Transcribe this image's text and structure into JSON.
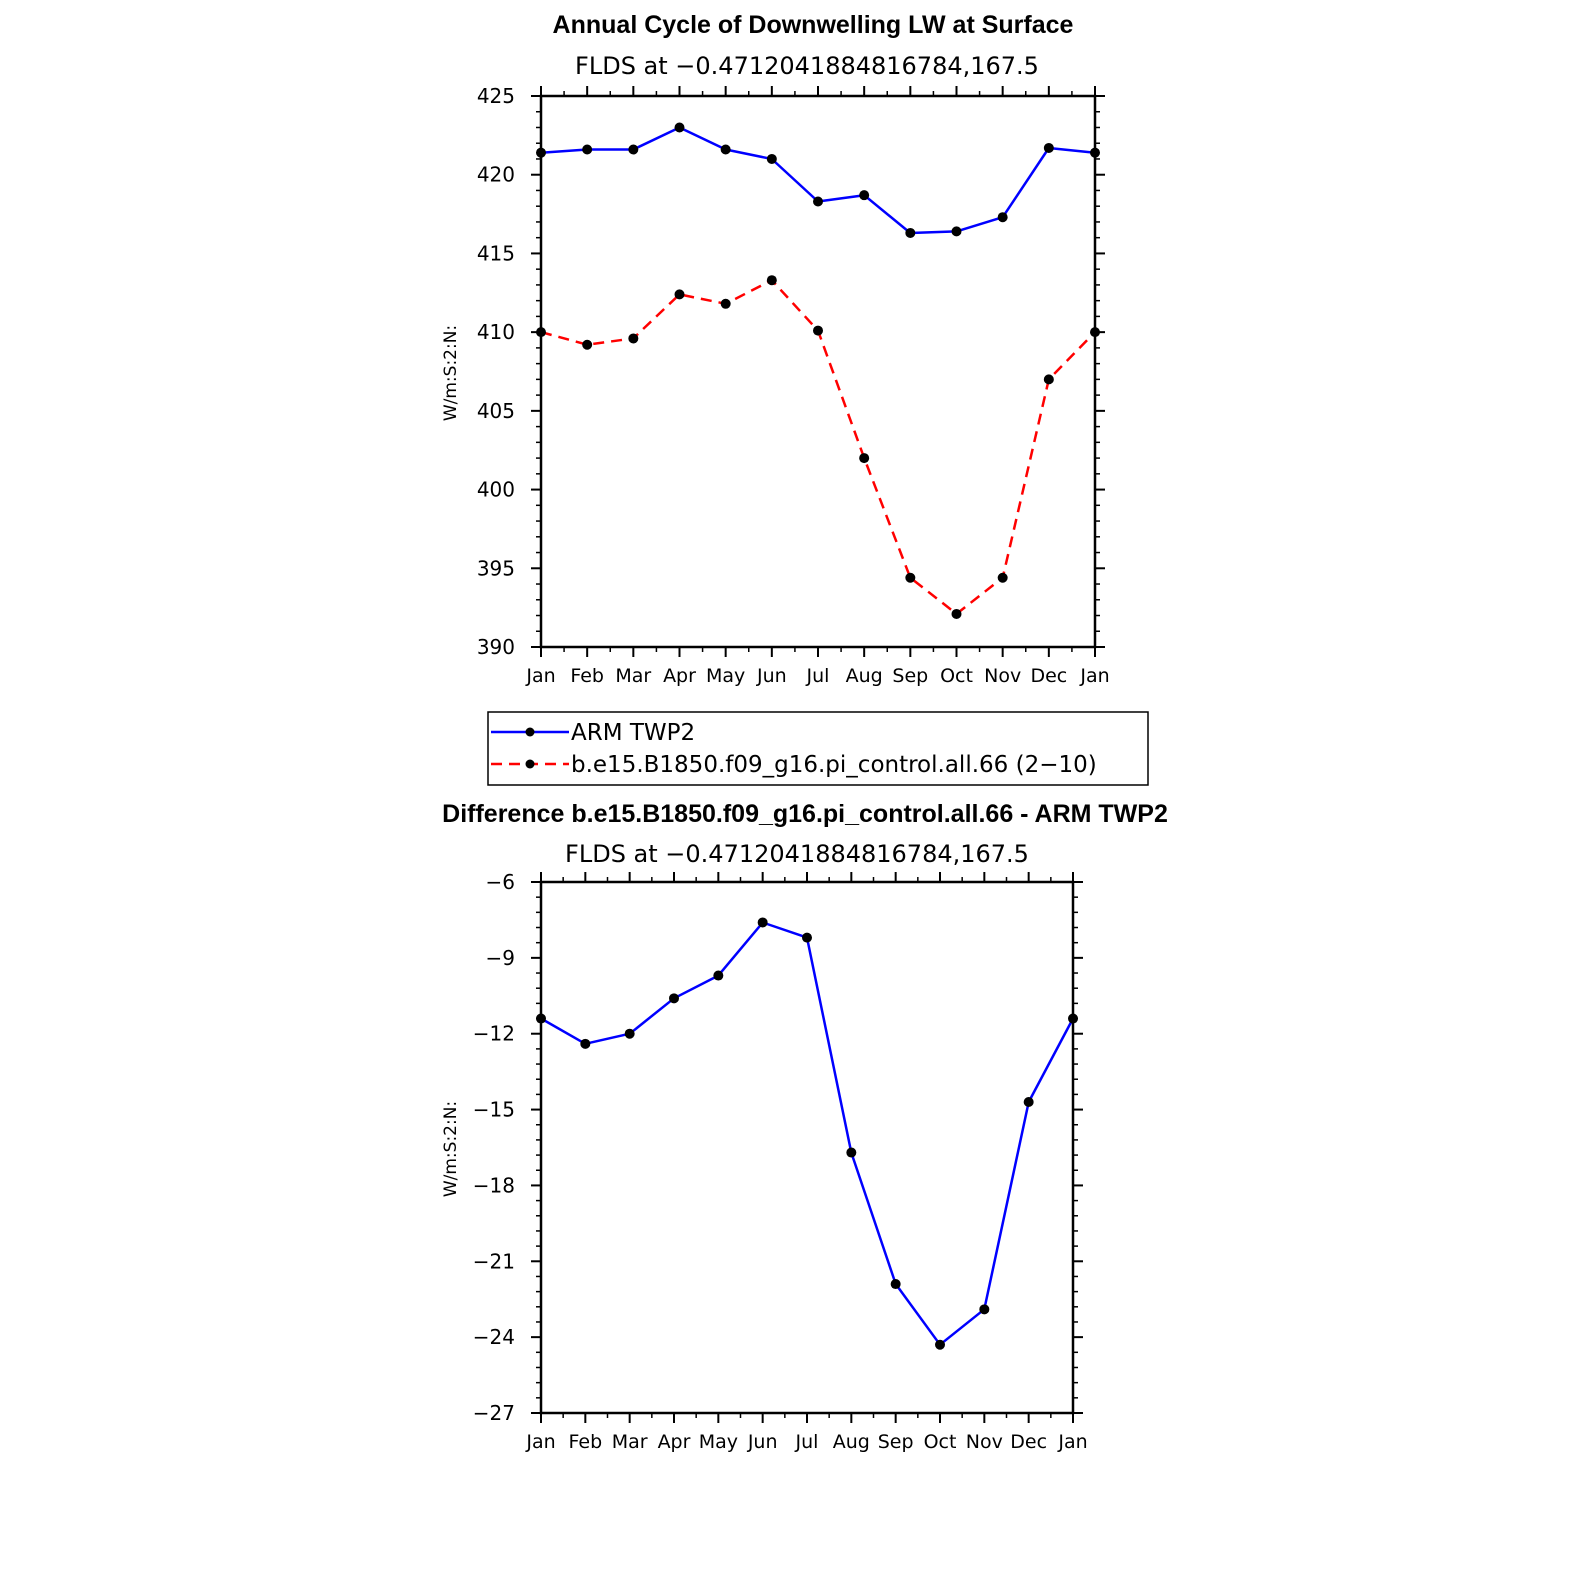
{
  "chart_data": [
    {
      "type": "line",
      "title": "Annual Cycle of Downwelling LW at Surface",
      "subtitle": "FLDS at −0.4712041884816784,167.5",
      "ylabel": "W/m:S:2:N:",
      "xlabel": "",
      "categories": [
        "Jan",
        "Feb",
        "Mar",
        "Apr",
        "May",
        "Jun",
        "Jul",
        "Aug",
        "Sep",
        "Oct",
        "Nov",
        "Dec",
        "Jan"
      ],
      "ylim": [
        390,
        425
      ],
      "yticks": [
        "390",
        "395",
        "400",
        "405",
        "410",
        "415",
        "420",
        "425"
      ],
      "series": [
        {
          "name": "ARM TWP2",
          "color": "#0000ff",
          "dash": "solid",
          "values": [
            421.4,
            421.6,
            421.6,
            423.0,
            421.6,
            421.0,
            418.3,
            418.7,
            416.3,
            416.4,
            417.3,
            421.7,
            421.4
          ]
        },
        {
          "name": "b.e15.B1850.f09_g16.pi_control.all.66 (2−10)",
          "color": "#ff0000",
          "dash": "dashed",
          "values": [
            410.0,
            409.2,
            409.6,
            412.4,
            411.8,
            413.3,
            410.1,
            402.0,
            394.4,
            392.1,
            394.4,
            407.0,
            410.0
          ]
        }
      ],
      "legend": {
        "position": "bottom",
        "entries": [
          "ARM TWP2",
          "b.e15.B1850.f09_g16.pi_control.all.66 (2−10)"
        ]
      }
    },
    {
      "type": "line",
      "title": "Difference b.e15.B1850.f09_g16.pi_control.all.66 - ARM TWP2",
      "subtitle": "FLDS at −0.4712041884816784,167.5",
      "ylabel": "W/m:S:2:N:",
      "xlabel": "",
      "categories": [
        "Jan",
        "Feb",
        "Mar",
        "Apr",
        "May",
        "Jun",
        "Jul",
        "Aug",
        "Sep",
        "Oct",
        "Nov",
        "Dec",
        "Jan"
      ],
      "ylim": [
        -27,
        -6
      ],
      "yticks": [
        "−27",
        "−24",
        "−21",
        "−18",
        "−15",
        "−12",
        "−9",
        "−6"
      ],
      "series": [
        {
          "name": "Difference",
          "color": "#0000ff",
          "dash": "solid",
          "values": [
            -11.4,
            -12.4,
            -12.0,
            -10.6,
            -9.7,
            -7.6,
            -8.2,
            -16.7,
            -21.9,
            -24.3,
            -22.9,
            -14.7,
            -11.4
          ]
        }
      ]
    }
  ]
}
